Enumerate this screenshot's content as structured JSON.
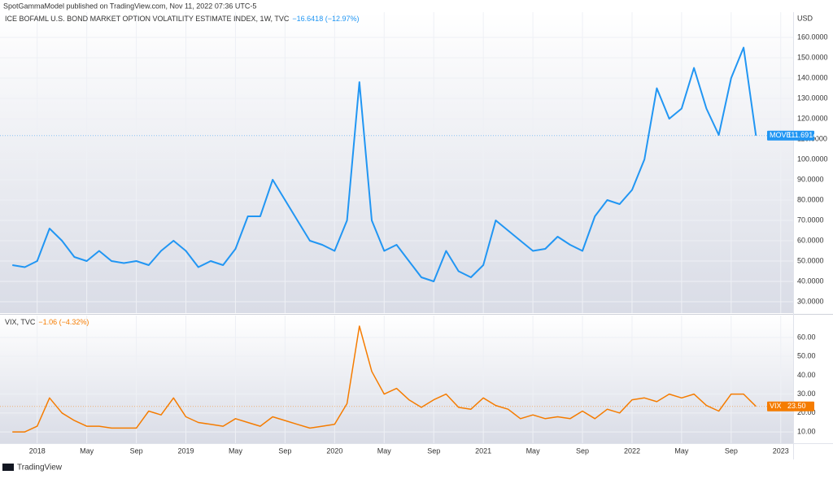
{
  "header": "SpotGammaModel published on TradingView.com, Nov 11, 2022 07:36 UTC-5",
  "footer": "TradingView",
  "currency": "USD",
  "chart_data": [
    {
      "type": "line",
      "title": "ICE BOFAML U.S. BOND MARKET OPTION VOLATILITY ESTIMATE INDEX, 1W, TVC",
      "change": "−16.6418 (−12.97%)",
      "x": [
        "2017-11",
        "2017-12",
        "2018-01",
        "2018-02",
        "2018-03",
        "2018-04",
        "2018-05",
        "2018-06",
        "2018-07",
        "2018-08",
        "2018-09",
        "2018-10",
        "2018-11",
        "2018-12",
        "2019-01",
        "2019-02",
        "2019-03",
        "2019-04",
        "2019-05",
        "2019-06",
        "2019-07",
        "2019-08",
        "2019-09",
        "2019-10",
        "2019-11",
        "2019-12",
        "2020-01",
        "2020-02",
        "2020-03",
        "2020-04",
        "2020-05",
        "2020-06",
        "2020-07",
        "2020-08",
        "2020-09",
        "2020-10",
        "2020-11",
        "2020-12",
        "2021-01",
        "2021-02",
        "2021-03",
        "2021-04",
        "2021-05",
        "2021-06",
        "2021-07",
        "2021-08",
        "2021-09",
        "2021-10",
        "2021-11",
        "2021-12",
        "2022-01",
        "2022-02",
        "2022-03",
        "2022-04",
        "2022-05",
        "2022-06",
        "2022-07",
        "2022-08",
        "2022-09",
        "2022-10",
        "2022-11"
      ],
      "xlim": [
        "2017-10",
        "2023-02"
      ],
      "series": [
        {
          "name": "MOVE",
          "color": "#2196f3",
          "last_label": "111.6914",
          "values": [
            48,
            47,
            50,
            66,
            60,
            52,
            50,
            55,
            50,
            49,
            50,
            48,
            55,
            60,
            55,
            47,
            50,
            48,
            56,
            72,
            72,
            90,
            80,
            70,
            60,
            58,
            55,
            70,
            138,
            70,
            55,
            58,
            50,
            42,
            40,
            55,
            45,
            42,
            48,
            70,
            65,
            60,
            55,
            56,
            62,
            58,
            55,
            72,
            80,
            78,
            85,
            100,
            135,
            120,
            125,
            145,
            125,
            112,
            140,
            155,
            111.6914
          ]
        }
      ],
      "ylim": [
        24.4,
        172.4
      ],
      "yticks": [
        {
          "value": 30,
          "label": "30.0000"
        },
        {
          "value": 40,
          "label": "40.0000"
        },
        {
          "value": 50,
          "label": "50.0000"
        },
        {
          "value": 60,
          "label": "60.0000"
        },
        {
          "value": 70,
          "label": "70.0000"
        },
        {
          "value": 80,
          "label": "80.0000"
        },
        {
          "value": 90,
          "label": "90.0000"
        },
        {
          "value": 100,
          "label": "100.0000"
        },
        {
          "value": 110,
          "label": "110.0000"
        },
        {
          "value": 120,
          "label": "120.0000"
        },
        {
          "value": 130,
          "label": "130.0000"
        },
        {
          "value": 140,
          "label": "140.0000"
        },
        {
          "value": 150,
          "label": "150.0000"
        },
        {
          "value": 160,
          "label": "160.0000"
        }
      ],
      "grid": true
    },
    {
      "type": "line",
      "title": "VIX, TVC",
      "change": "−1.06 (−4.32%)",
      "x": [
        "2017-11",
        "2017-12",
        "2018-01",
        "2018-02",
        "2018-03",
        "2018-04",
        "2018-05",
        "2018-06",
        "2018-07",
        "2018-08",
        "2018-09",
        "2018-10",
        "2018-11",
        "2018-12",
        "2019-01",
        "2019-02",
        "2019-03",
        "2019-04",
        "2019-05",
        "2019-06",
        "2019-07",
        "2019-08",
        "2019-09",
        "2019-10",
        "2019-11",
        "2019-12",
        "2020-01",
        "2020-02",
        "2020-03",
        "2020-04",
        "2020-05",
        "2020-06",
        "2020-07",
        "2020-08",
        "2020-09",
        "2020-10",
        "2020-11",
        "2020-12",
        "2021-01",
        "2021-02",
        "2021-03",
        "2021-04",
        "2021-05",
        "2021-06",
        "2021-07",
        "2021-08",
        "2021-09",
        "2021-10",
        "2021-11",
        "2021-12",
        "2022-01",
        "2022-02",
        "2022-03",
        "2022-04",
        "2022-05",
        "2022-06",
        "2022-07",
        "2022-08",
        "2022-09",
        "2022-10",
        "2022-11"
      ],
      "xlim": [
        "2017-10",
        "2023-02"
      ],
      "series": [
        {
          "name": "VIX",
          "color": "#f57c00",
          "last_label": "23.50",
          "values": [
            10,
            10,
            13,
            28,
            20,
            16,
            13,
            13,
            12,
            12,
            12,
            21,
            19,
            28,
            18,
            15,
            14,
            13,
            17,
            15,
            13,
            18,
            16,
            14,
            12,
            13,
            14,
            25,
            66,
            42,
            30,
            33,
            27,
            23,
            27,
            30,
            23,
            22,
            28,
            24,
            22,
            17,
            19,
            17,
            18,
            17,
            21,
            17,
            22,
            20,
            27,
            28,
            26,
            30,
            28,
            30,
            24,
            21,
            30,
            30,
            23.5
          ]
        }
      ],
      "ylim": [
        4,
        71.6
      ],
      "yticks": [
        {
          "value": 10,
          "label": "10.00"
        },
        {
          "value": 20,
          "label": "20.00"
        },
        {
          "value": 30,
          "label": "30.00"
        },
        {
          "value": 40,
          "label": "40.00"
        },
        {
          "value": 50,
          "label": "50.00"
        },
        {
          "value": 60,
          "label": "60.00"
        }
      ],
      "xticks": [
        {
          "value": "2018-01",
          "label": "2018"
        },
        {
          "value": "2018-05",
          "label": "May"
        },
        {
          "value": "2018-09",
          "label": "Sep"
        },
        {
          "value": "2019-01",
          "label": "2019"
        },
        {
          "value": "2019-05",
          "label": "May"
        },
        {
          "value": "2019-09",
          "label": "Sep"
        },
        {
          "value": "2020-01",
          "label": "2020"
        },
        {
          "value": "2020-05",
          "label": "May"
        },
        {
          "value": "2020-09",
          "label": "Sep"
        },
        {
          "value": "2021-01",
          "label": "2021"
        },
        {
          "value": "2021-05",
          "label": "May"
        },
        {
          "value": "2021-09",
          "label": "Sep"
        },
        {
          "value": "2022-01",
          "label": "2022"
        },
        {
          "value": "2022-05",
          "label": "May"
        },
        {
          "value": "2022-09",
          "label": "Sep"
        },
        {
          "value": "2023-01",
          "label": "2023"
        }
      ],
      "grid": true
    }
  ]
}
